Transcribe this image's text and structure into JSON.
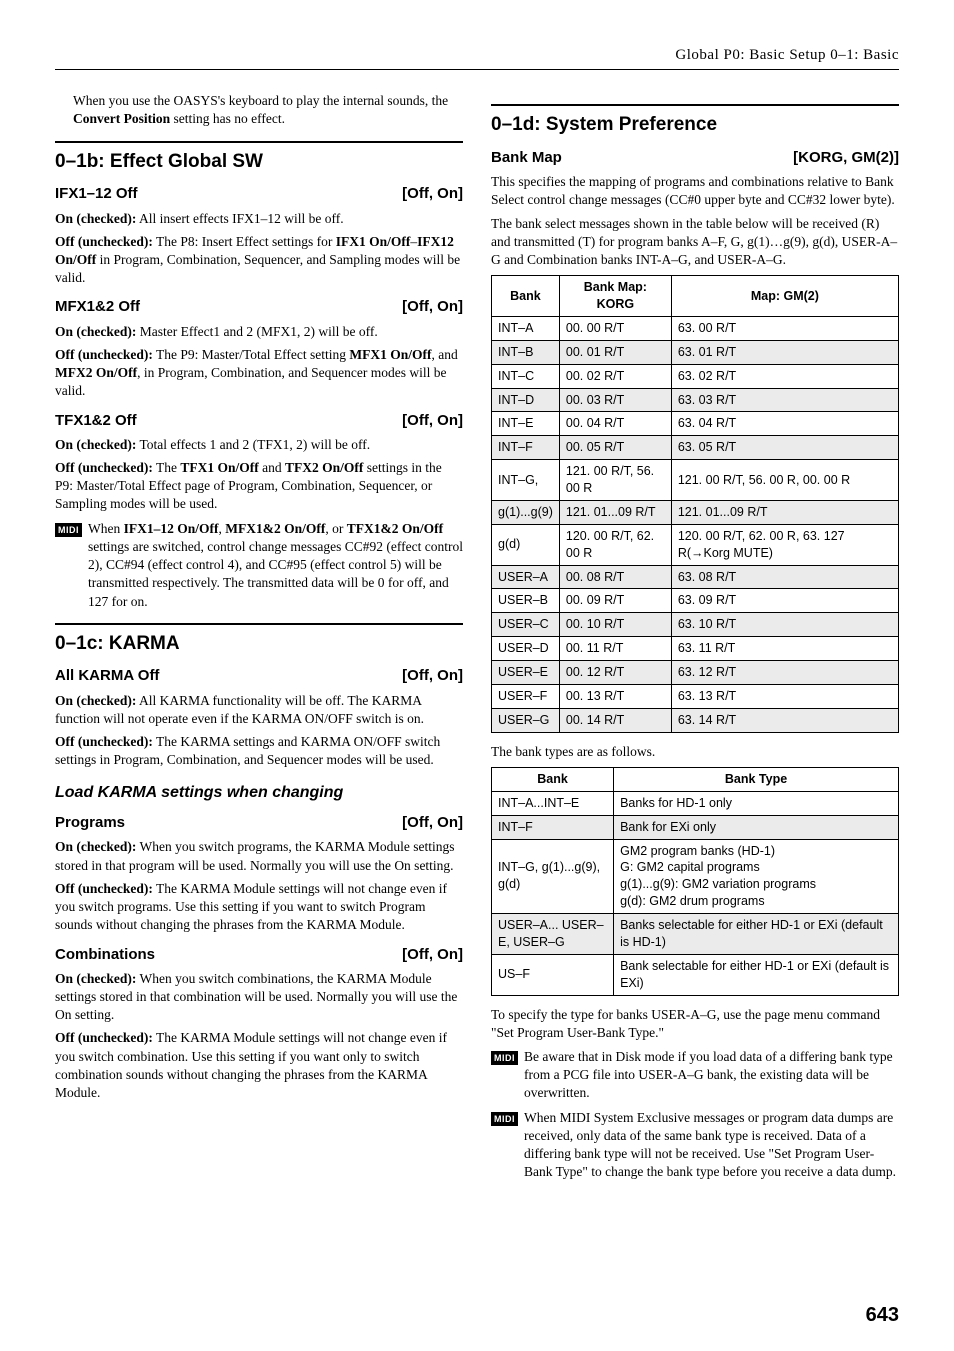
{
  "runningHead": "Global P0: Basic Setup   0–1: Basic",
  "pageNumber": "643",
  "intro": "When you use the OASYS's keyboard to play the internal sounds, the <b>Convert Position</b> setting has no effect.",
  "sections": {
    "s01b": {
      "title": "0–1b: Effect Global SW",
      "params": [
        {
          "name": "IFX1–12 Off",
          "range": "[Off, On]",
          "body": [
            "<b>On (checked):</b> All insert effects IFX1–12 will be off.",
            "<b>Off (unchecked):</b> The P8: Insert Effect settings for <b>IFX1 On/Off</b>–<b>IFX12 On/Off</b> in Program, Combination, Sequencer, and Sampling modes will be valid."
          ]
        },
        {
          "name": "MFX1&2 Off",
          "range": "[Off, On]",
          "body": [
            "<b>On (checked):</b> Master Effect1 and 2 (MFX1, 2) will be off.",
            "<b>Off (unchecked):</b> The P9: Master/Total Effect setting <b>MFX1 On/Off</b>, and <b>MFX2 On/Off</b>, in Program, Combination, and Sequencer modes will be valid."
          ]
        },
        {
          "name": "TFX1&2 Off",
          "range": "[Off, On]",
          "body": [
            "<b>On (checked):</b> Total effects 1 and 2 (TFX1, 2) will be off.",
            "<b>Off (unchecked):</b> The <b>TFX1 On/Off</b> and <b>TFX2 On/Off</b> settings in the P9: Master/Total Effect page of Program, Combination, Sequencer, or Sampling modes will be used."
          ],
          "midi": "When <b>IFX1–12 On/Off</b>, <b>MFX1&2 On/Off</b>, or <b>TFX1&2 On/Off</b> settings are switched, control change messages CC#92 (effect control 2), CC#94 (effect control 4), and CC#95 (effect control 5) will be transmitted respectively. The transmitted data will be 0 for off, and 127 for on."
        }
      ]
    },
    "s01c": {
      "title": "0–1c: KARMA",
      "params": [
        {
          "name": "All KARMA Off",
          "range": "[Off, On]",
          "body": [
            "<b>On (checked):</b> All KARMA functionality will be off. The KARMA function will not operate even if the KARMA ON/OFF switch is on.",
            "<b>Off (unchecked):</b> The KARMA settings and KARMA ON/OFF switch settings in Program, Combination, and Sequencer modes will be used."
          ]
        }
      ],
      "subsection": {
        "title": "Load KARMA settings when changing",
        "params": [
          {
            "name": "Programs",
            "range": "[Off, On]",
            "body": [
              "<b>On (checked):</b> When you switch programs, the KARMA Module settings stored in that program will be used. Normally you will use the On setting.",
              "<b>Off (unchecked):</b> The KARMA Module settings will not change even if you switch programs. Use this setting if you want to switch Program sounds without changing the phrases from the KARMA Module."
            ]
          },
          {
            "name": "Combinations",
            "range": "[Off, On]",
            "body": [
              "<b>On (checked):</b> When you switch combinations, the KARMA Module settings stored in that combination will be used. Normally you will use the On setting.",
              "<b>Off (unchecked):</b> The KARMA Module settings will not change even if you switch combination. Use this setting if you want only to switch combination sounds without changing the phrases from the KARMA Module."
            ]
          }
        ]
      }
    },
    "s01d": {
      "title": "0–1d: System Preference",
      "param": {
        "name": "Bank Map",
        "range": "[KORG, GM(2)]"
      },
      "body": [
        "This specifies the mapping of programs and combinations relative to Bank Select control change messages (CC#0 upper byte and CC#32 lower byte).",
        "The bank select messages shown in the table below will be received (R) and transmitted (T) for program banks A–F, G, g(1)…g(9), g(d), USER-A–G and Combination banks INT-A–G, and USER-A–G."
      ],
      "table1": {
        "headers": [
          "Bank",
          "Bank Map: KORG",
          "Map: GM(2)"
        ],
        "rows": [
          [
            "INT–A",
            "00. 00 R/T",
            "63. 00 R/T"
          ],
          [
            "INT–B",
            "00. 01 R/T",
            "63. 01 R/T"
          ],
          [
            "INT–C",
            "00. 02 R/T",
            "63. 02 R/T"
          ],
          [
            "INT–D",
            "00. 03 R/T",
            "63. 03 R/T"
          ],
          [
            "INT–E",
            "00. 04 R/T",
            "63. 04 R/T"
          ],
          [
            "INT–F",
            "00. 05 R/T",
            "63. 05 R/T"
          ],
          [
            "INT–G,",
            "121. 00 R/T, 56. 00 R",
            "121. 00 R/T, 56. 00 R, 00. 00 R"
          ],
          [
            "g(1)...g(9)",
            "121. 01...09 R/T",
            "121. 01...09 R/T"
          ],
          [
            "g(d)",
            "120. 00 R/T, 62. 00 R",
            "120. 00 R/T, 62. 00 R, 63. 127 R(→Korg MUTE)"
          ],
          [
            "USER–A",
            "00. 08 R/T",
            "63. 08 R/T"
          ],
          [
            "USER–B",
            "00. 09 R/T",
            "63. 09 R/T"
          ],
          [
            "USER–C",
            "00. 10 R/T",
            "63. 10 R/T"
          ],
          [
            "USER–D",
            "00. 11 R/T",
            "63. 11 R/T"
          ],
          [
            "USER–E",
            "00. 12 R/T",
            "63. 12 R/T"
          ],
          [
            "USER–F",
            "00. 13 R/T",
            "63. 13 R/T"
          ],
          [
            "USER–G",
            "00. 14 R/T",
            "63. 14 R/T"
          ]
        ]
      },
      "afterTable1": "The bank types are as follows.",
      "table2": {
        "headers": [
          "Bank",
          "Bank Type"
        ],
        "rows": [
          [
            "INT–A...INT–E",
            "Banks for HD-1 only"
          ],
          [
            "INT–F",
            "Bank for EXi only"
          ],
          [
            "INT–G, g(1)...g(9), g(d)",
            "GM2 program banks (HD-1)\nG: GM2 capital programs\ng(1)...g(9): GM2 variation programs\ng(d): GM2 drum programs"
          ],
          [
            "USER–A... USER–E, USER–G",
            "Banks selectable for either HD-1 or EXi (default is HD-1)"
          ],
          [
            "US–F",
            "Bank selectable for either HD-1 or EXi (default is EXi)"
          ]
        ]
      },
      "afterTable2": "To specify the type for banks USER-A–G, use the page menu command \"Set Program User-Bank Type.\"",
      "midiNotes": [
        "Be aware that in Disk mode if you load data of a differing bank type from a PCG file into USER-A–G bank, the existing data will be overwritten.",
        "When MIDI System Exclusive messages or program data dumps are received, only data of the same bank type is received. Data of a differing bank type will not be received. Use \"Set Program User-Bank Type\" to change the bank type before you receive a data dump."
      ]
    }
  },
  "midiTag": "MIDI"
}
